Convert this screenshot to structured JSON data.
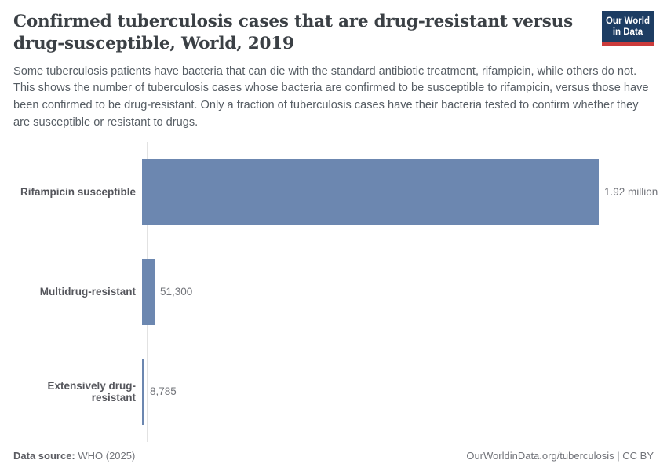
{
  "header": {
    "title": "Confirmed tuberculosis cases that are drug-resistant versus drug-susceptible, World, 2019",
    "subtitle": "Some tuberculosis patients have bacteria that can die with the standard antibiotic treatment, rifampicin, while others do not. This shows the number of tuberculosis cases whose bacteria are confirmed to be susceptible to rifampicin, versus those have been confirmed to be drug-resistant. Only a fraction of tuberculosis cases have their bacteria tested to confirm whether they are susceptible or resistant to drugs.",
    "logo": {
      "line1": "Our World",
      "line2": "in Data",
      "bg_color": "#1d3d63",
      "accent_color": "#cc3b3b"
    }
  },
  "chart_data": {
    "type": "bar",
    "orientation": "horizontal",
    "title": "Confirmed tuberculosis cases that are drug-resistant versus drug-susceptible, World, 2019",
    "categories": [
      "Rifampicin susceptible",
      "Multidrug-resistant",
      "Extensively drug-resistant"
    ],
    "values": [
      1920000,
      51300,
      8785
    ],
    "value_labels": [
      "1.92 million",
      "51,300",
      "8,785"
    ],
    "bar_color": "#6c87b0",
    "axis_color": "#e2e2e2",
    "xlim": [
      0,
      1920000
    ],
    "grid": false,
    "legend": "none"
  },
  "footer": {
    "data_source_label": "Data source:",
    "data_source_value": " WHO (2025)",
    "attribution": "OurWorldinData.org/tuberculosis | CC BY"
  }
}
